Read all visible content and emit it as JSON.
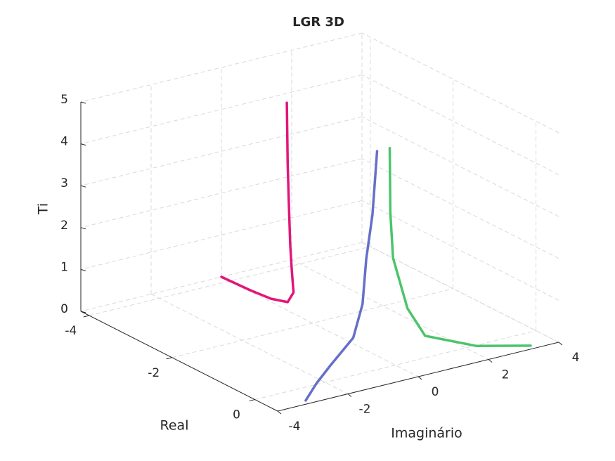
{
  "chart_data": {
    "type": "line3d",
    "title": "LGR 3D",
    "x_label": "Real",
    "y_label": "Imaginário",
    "z_label": "Ti",
    "xlim": [
      -4.2,
      0.55
    ],
    "ylim": [
      -4,
      4
    ],
    "zlim": [
      0,
      5
    ],
    "xticks": [
      -4,
      -2,
      0
    ],
    "yticks": [
      -4,
      -2,
      0,
      2,
      4
    ],
    "zticks": [
      0,
      1,
      2,
      3,
      4,
      5
    ],
    "grid": true,
    "series": [
      {
        "color": "#e0177a",
        "x": [
          -2.62,
          -2.6,
          -2.57,
          -2.54,
          -2.5,
          -2.46,
          -2.6,
          -3.0,
          -3.5,
          -4.2
        ],
        "y": [
          0,
          0,
          0,
          0,
          0,
          0,
          0,
          0,
          0,
          0
        ],
        "z": [
          4.95,
          3.5,
          2.5,
          1.6,
          1.0,
          0.5,
          0.2,
          0.08,
          0.03,
          0
        ]
      },
      {
        "color": "#6670c8",
        "x": [
          -0.29,
          -0.3,
          -0.28,
          -0.2,
          0,
          0.17,
          0.3,
          0.43
        ],
        "y": [
          -0.18,
          -0.3,
          -0.5,
          -0.7,
          -1.2,
          -2.05,
          -2.6,
          -3.06
        ],
        "z": [
          5,
          3.5,
          2.5,
          1.5,
          0.9,
          0.5,
          0.25,
          0
        ]
      },
      {
        "color": "#4cc46c",
        "x": [
          -0.29,
          -0.25,
          -0.1,
          0.29,
          0.37,
          0.42,
          0.44
        ],
        "y": [
          0.18,
          0.15,
          0.05,
          0,
          0.41,
          1.8,
          3.33
        ],
        "z": [
          5,
          3.5,
          2.5,
          1.5,
          0.8,
          0.3,
          0
        ]
      }
    ]
  }
}
